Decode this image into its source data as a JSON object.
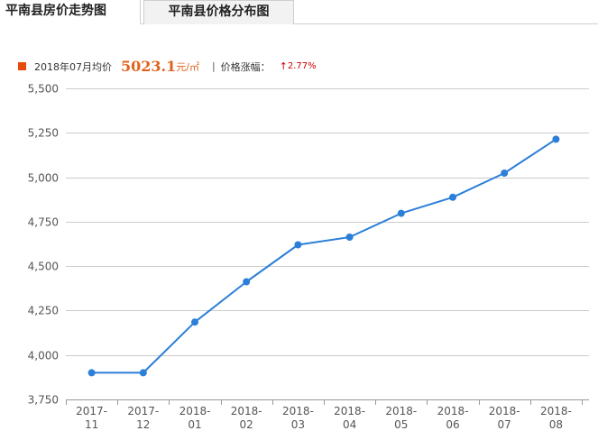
{
  "tabs": [
    {
      "label": "平南县房价走势图",
      "active": true
    },
    {
      "label": "平南县价格分布图",
      "active": false
    }
  ],
  "summary": {
    "period_label": "2018年07月均价",
    "price": "5023.1",
    "unit": "元/㎡",
    "separator": "|",
    "change_label": "价格涨幅：",
    "change_arrow": "↑",
    "change_value": "2.77%"
  },
  "colors": {
    "legend_marker": "#e84c0d",
    "price_text": "#e0621e",
    "change_text": "#cc0000",
    "line": "#2b7fd9",
    "grid": "#cccccc"
  },
  "chart_data": {
    "type": "line",
    "categories": [
      "2017-11",
      "2017-12",
      "2018-01",
      "2018-02",
      "2018-03",
      "2018-04",
      "2018-05",
      "2018-06",
      "2018-07",
      "2018-08"
    ],
    "series": [
      {
        "values": [
          3900,
          3900,
          4185,
          4412,
          4620,
          4663,
          4797,
          4887,
          5023.1,
          5214
        ]
      }
    ],
    "ylim": [
      3750,
      5500
    ],
    "yticks": [
      3750,
      4000,
      4250,
      4500,
      4750,
      5000,
      5250,
      5500
    ],
    "ytick_labels": [
      "3,750",
      "4,000",
      "4,250",
      "4,500",
      "4,750",
      "5,000",
      "5,250",
      "5,500"
    ],
    "grid": true,
    "title": "",
    "xlabel": "",
    "ylabel": ""
  }
}
